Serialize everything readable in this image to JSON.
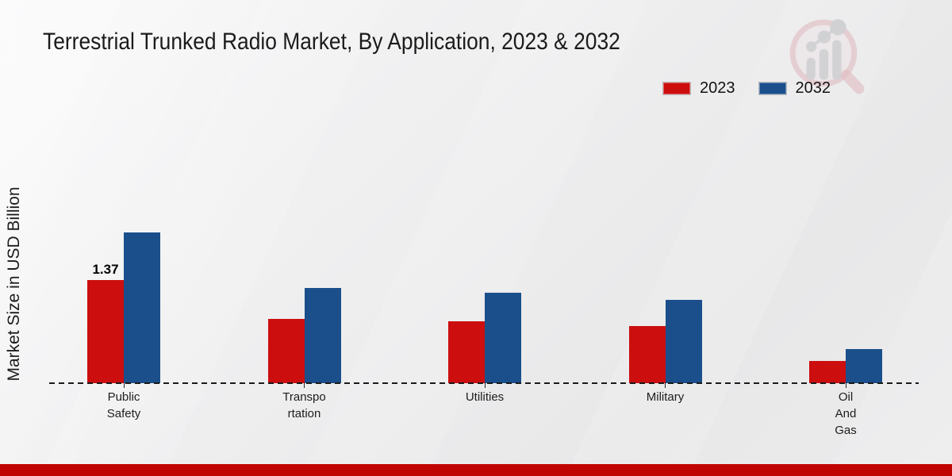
{
  "title": "Terrestrial Trunked Radio Market, By Application, 2023 & 2032",
  "y_axis": {
    "label": "Market Size in USD Billion"
  },
  "legend": {
    "position": "top-right",
    "items": [
      {
        "label": "2023",
        "color": "#cc0e0f"
      },
      {
        "label": "2032",
        "color": "#1a4f8b"
      }
    ]
  },
  "watermark": {
    "icon": "magnifier-bar-chart-logo"
  },
  "footer": {
    "bar_color": "#c00404"
  },
  "chart_data": {
    "type": "bar",
    "title": "Terrestrial Trunked Radio Market, By Application, 2023 & 2032",
    "categories": [
      "Public Safety",
      "Transportation",
      "Utilities",
      "Military",
      "Oil And Gas"
    ],
    "category_label_lines": [
      [
        "Public",
        "Safety"
      ],
      [
        "Transpo",
        "rtation"
      ],
      [
        "Utilities"
      ],
      [
        "Military"
      ],
      [
        "Oil",
        "And",
        "Gas"
      ]
    ],
    "series": [
      {
        "name": "2023",
        "color": "#cc0e0f",
        "values": [
          1.37,
          0.85,
          0.82,
          0.76,
          0.29
        ]
      },
      {
        "name": "2032",
        "color": "#1a4f8b",
        "values": [
          2.0,
          1.26,
          1.2,
          1.1,
          0.45
        ]
      }
    ],
    "annotations": [
      {
        "series": "2023",
        "category_index": 0,
        "text": "1.37"
      }
    ],
    "xlabel": "",
    "ylabel": "Market Size in USD Billion",
    "ylim": [
      0,
      2.2
    ],
    "grid": false,
    "baseline_style": "dashed",
    "legend_position": "top-right"
  }
}
